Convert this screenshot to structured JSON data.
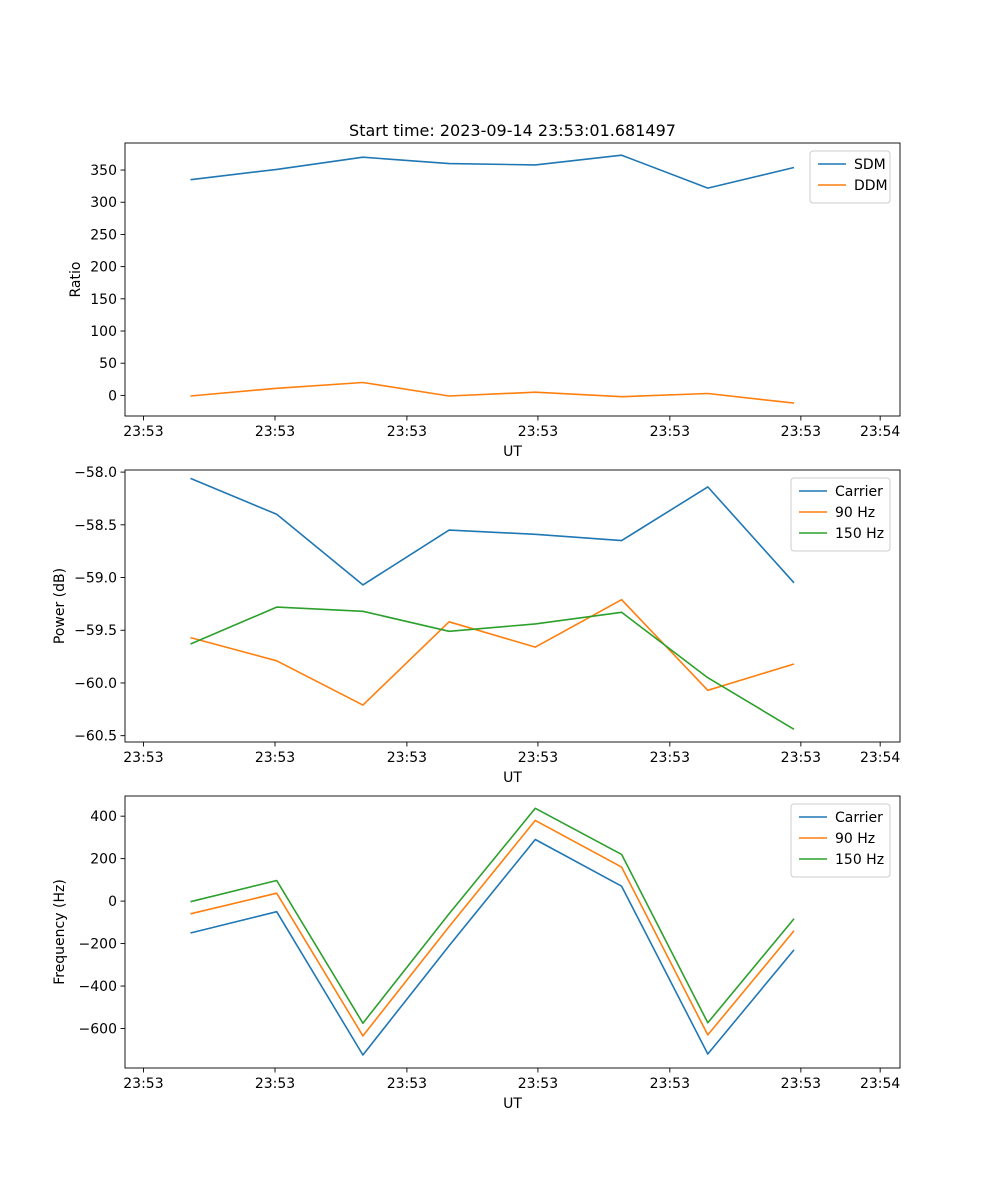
{
  "chart_data": [
    {
      "type": "line",
      "title": "Start time: 2023-09-14 23:53:01.681497",
      "xlabel": "UT",
      "ylabel": "Ratio",
      "x": [
        1,
        2,
        3,
        4,
        5,
        6,
        7,
        8
      ],
      "xlim": [
        0.24,
        9.23
      ],
      "x_ticks": [
        {
          "value": 0.454,
          "label": "23:53"
        },
        {
          "value": 1.98,
          "label": "23:53"
        },
        {
          "value": 3.51,
          "label": "23:53"
        },
        {
          "value": 5.03,
          "label": "23:53"
        },
        {
          "value": 6.56,
          "label": "23:53"
        },
        {
          "value": 8.08,
          "label": "23:53"
        },
        {
          "value": 9.0,
          "label": "23:54"
        }
      ],
      "ylim": [
        -32,
        392
      ],
      "y_ticks": [
        {
          "value": 0,
          "label": "0"
        },
        {
          "value": 50,
          "label": "50"
        },
        {
          "value": 100,
          "label": "100"
        },
        {
          "value": 150,
          "label": "150"
        },
        {
          "value": 200,
          "label": "200"
        },
        {
          "value": 250,
          "label": "250"
        },
        {
          "value": 300,
          "label": "300"
        },
        {
          "value": 350,
          "label": "350"
        }
      ],
      "legend_position": "top-right",
      "series": [
        {
          "name": "SDM",
          "color": "#1f77b4",
          "values": [
            335,
            351,
            370,
            360,
            358,
            373,
            322,
            354
          ]
        },
        {
          "name": "DDM",
          "color": "#ff7f0e",
          "values": [
            -1,
            11,
            20,
            -1,
            5,
            -2,
            3,
            -12
          ]
        }
      ]
    },
    {
      "type": "line",
      "title": "",
      "xlabel": "UT",
      "ylabel": "Power (dB)",
      "x": [
        1,
        2,
        3,
        4,
        5,
        6,
        7,
        8
      ],
      "xlim": [
        0.24,
        9.23
      ],
      "x_ticks": [
        {
          "value": 0.454,
          "label": "23:53"
        },
        {
          "value": 1.98,
          "label": "23:53"
        },
        {
          "value": 3.51,
          "label": "23:53"
        },
        {
          "value": 5.03,
          "label": "23:53"
        },
        {
          "value": 6.56,
          "label": "23:53"
        },
        {
          "value": 8.08,
          "label": "23:53"
        },
        {
          "value": 9.0,
          "label": "23:54"
        }
      ],
      "ylim": [
        -60.56,
        -57.98
      ],
      "y_ticks": [
        {
          "value": -60.5,
          "label": "−60.5"
        },
        {
          "value": -60.0,
          "label": "−60.0"
        },
        {
          "value": -59.5,
          "label": "−59.5"
        },
        {
          "value": -59.0,
          "label": "−59.0"
        },
        {
          "value": -58.5,
          "label": "−58.5"
        },
        {
          "value": -58.0,
          "label": "−58.0"
        }
      ],
      "legend_position": "top-right",
      "series": [
        {
          "name": "Carrier",
          "color": "#1f77b4",
          "values": [
            -58.06,
            -58.4,
            -59.07,
            -58.55,
            -58.59,
            -58.65,
            -58.14,
            -59.05
          ]
        },
        {
          "name": "90 Hz",
          "color": "#ff7f0e",
          "values": [
            -59.57,
            -59.79,
            -60.21,
            -59.42,
            -59.66,
            -59.21,
            -60.07,
            -59.82
          ]
        },
        {
          "name": "150 Hz",
          "color": "#2ca02c",
          "values": [
            -59.63,
            -59.28,
            -59.32,
            -59.51,
            -59.44,
            -59.33,
            -59.95,
            -60.44
          ]
        }
      ]
    },
    {
      "type": "line",
      "title": "",
      "xlabel": "UT",
      "ylabel": "Frequency (Hz)",
      "x": [
        1,
        2,
        3,
        4,
        5,
        6,
        7,
        8
      ],
      "xlim": [
        0.24,
        9.23
      ],
      "x_ticks": [
        {
          "value": 0.454,
          "label": "23:53"
        },
        {
          "value": 1.98,
          "label": "23:53"
        },
        {
          "value": 3.51,
          "label": "23:53"
        },
        {
          "value": 5.03,
          "label": "23:53"
        },
        {
          "value": 6.56,
          "label": "23:53"
        },
        {
          "value": 8.08,
          "label": "23:53"
        },
        {
          "value": 9.0,
          "label": "23:54"
        }
      ],
      "ylim": [
        -786,
        495
      ],
      "y_ticks": [
        {
          "value": -600,
          "label": "−600"
        },
        {
          "value": -400,
          "label": "−400"
        },
        {
          "value": -200,
          "label": "−200"
        },
        {
          "value": 0,
          "label": "0"
        },
        {
          "value": 200,
          "label": "200"
        },
        {
          "value": 400,
          "label": "400"
        }
      ],
      "legend_position": "top-right",
      "series": [
        {
          "name": "Carrier",
          "color": "#1f77b4",
          "values": [
            -150,
            -50,
            -725,
            -210,
            290,
            70,
            -720,
            -230
          ]
        },
        {
          "name": "90 Hz",
          "color": "#ff7f0e",
          "values": [
            -60,
            37,
            -635,
            -120,
            380,
            160,
            -630,
            -140
          ]
        },
        {
          "name": "150 Hz",
          "color": "#2ca02c",
          "values": [
            -3,
            97,
            -575,
            -60,
            437,
            220,
            -573,
            -83
          ]
        }
      ]
    }
  ]
}
